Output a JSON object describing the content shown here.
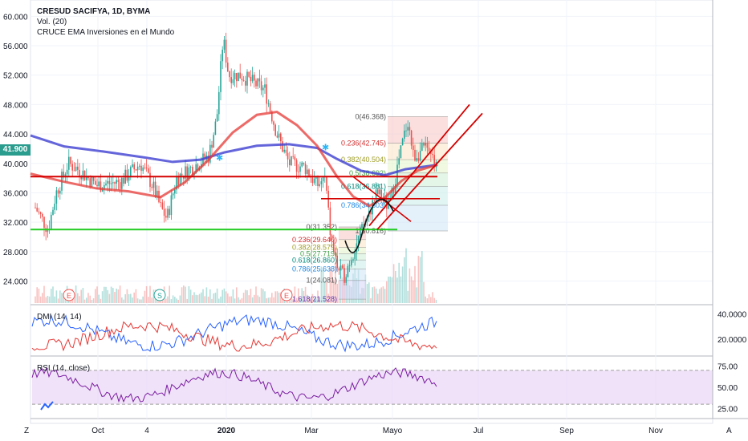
{
  "header": {
    "symbol_line": "CRESUD SACIFYA, 1D, BYMA",
    "vol_label": "Vol. (20)",
    "indicator_label": "CRUCE EMA Inversiones en el Mundo"
  },
  "last_price": "41.900",
  "colors": {
    "up": "#26a69a",
    "down": "#ef5350",
    "ema_fast": "#e53935",
    "ema_slow": "#3d3fd1",
    "support": "#22cc22",
    "dmi_plus": "#2962ff",
    "dmi_minus": "#e53935",
    "rsi": "#7b1fa2",
    "rsi_band": "#e9d5f5"
  },
  "chart_data": [
    {
      "type": "candlestick",
      "title": "CRESUD SACIFYA, 1D, BYMA",
      "y_ticks": [
        "60.000",
        "56.000",
        "52.000",
        "48.000",
        "44.000",
        "40.000",
        "36.000",
        "32.000",
        "28.000",
        "24.000"
      ],
      "ylim": [
        21,
        62
      ],
      "x_ticks": [
        "Oct",
        "4",
        "2020",
        "Mar",
        "Mayo",
        "Jul",
        "Sep",
        "Nov"
      ],
      "events": [
        "E",
        "S",
        "E"
      ],
      "horizontal_lines": [
        {
          "name": "resistance",
          "value": 38.2
        },
        {
          "name": "support",
          "value": 31.0
        }
      ],
      "fib_left": [
        {
          "label": "0(31.352)",
          "value": 31.352
        },
        {
          "label": "0.236(29.640)",
          "value": 29.64
        },
        {
          "label": "0.382(28.579)",
          "value": 28.579
        },
        {
          "label": "0.5(27.719)",
          "value": 27.719
        },
        {
          "label": "0.618(26.860)",
          "value": 26.86
        },
        {
          "label": "0.786(25.638)",
          "value": 25.638
        },
        {
          "label": "1(24.081)",
          "value": 24.081
        },
        {
          "label": "1.618(21.528)",
          "value": 21.528
        }
      ],
      "fib_right": [
        {
          "label": "0(46.368)",
          "value": 46.368
        },
        {
          "label": "0.236(42.745)",
          "value": 42.745
        },
        {
          "label": "0.382(40.504)",
          "value": 40.504
        },
        {
          "label": "0.5(38.692)",
          "value": 38.692
        },
        {
          "label": "0.618(36.881)",
          "value": 36.881
        },
        {
          "label": "0.786(34.303)",
          "value": 34.303
        },
        {
          "label": "1(30.816)",
          "value": 30.816
        }
      ],
      "last_value": 41.9
    },
    {
      "type": "line",
      "title": "DMI (14, 14)",
      "y_ticks": [
        "40.0000",
        "20.0000"
      ],
      "series": [
        {
          "values": []
        },
        {
          "values": []
        }
      ]
    },
    {
      "type": "line",
      "title": "RSI (14, close)",
      "y_ticks": [
        "75.00",
        "50.00",
        "25.00"
      ],
      "bands": [
        30,
        70
      ],
      "series": [
        {
          "values": []
        }
      ]
    }
  ],
  "footer": {
    "z_label": "Z",
    "a_label": "A"
  }
}
